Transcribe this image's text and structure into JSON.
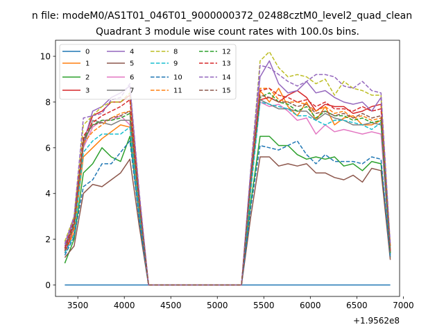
{
  "suptitle": "n file: modeM0/AS1T01_046T01_9000000372_02488cztM0_level2_quad_clean",
  "chart_data": {
    "type": "line",
    "title": "Quadrant 3 module wise count rates with 100.0s bins.",
    "xlabel": "",
    "ylabel": "",
    "x_offset_label": "+1.9562e8",
    "x": [
      3360,
      3460,
      3560,
      3660,
      3760,
      3860,
      3960,
      4060,
      4160,
      4260,
      4360,
      4460,
      4560,
      4660,
      4760,
      4860,
      4960,
      5060,
      5160,
      5260,
      5360,
      5460,
      5560,
      5660,
      5760,
      5860,
      5960,
      6060,
      6160,
      6260,
      6360,
      6460,
      6560,
      6660,
      6760,
      6860
    ],
    "xlim": [
      3260,
      6960
    ],
    "ylim": [
      -0.5,
      10.7
    ],
    "xticks": [
      3500,
      4000,
      4500,
      5000,
      5500,
      6000,
      6500,
      7000
    ],
    "yticks": [
      0,
      2,
      4,
      6,
      8,
      10
    ],
    "legend": {
      "position": "top-left",
      "columns": 4
    },
    "series": [
      {
        "name": "0",
        "color": "#1f77b4",
        "dash": "solid",
        "values": [
          0,
          0,
          0,
          0,
          0,
          0,
          0,
          0,
          0,
          0,
          0,
          0,
          0,
          0,
          0,
          0,
          0,
          0,
          0,
          0,
          0,
          0,
          0,
          0,
          0,
          0,
          0,
          0,
          0,
          0,
          0,
          0,
          0,
          0,
          0,
          0
        ]
      },
      {
        "name": "1",
        "color": "#ff7f0e",
        "dash": "solid",
        "values": [
          1.4,
          2.3,
          5.6,
          6.0,
          6.4,
          6.7,
          7.0,
          6.9,
          3.2,
          0,
          0,
          0,
          0,
          0,
          0,
          0,
          0,
          0,
          0,
          0,
          4.2,
          8.5,
          8.0,
          8.6,
          7.8,
          7.4,
          8.0,
          7.2,
          7.8,
          7.0,
          7.3,
          7.4,
          7.0,
          7.0,
          7.2,
          1.4
        ]
      },
      {
        "name": "2",
        "color": "#2ca02c",
        "dash": "solid",
        "values": [
          0.95,
          2.0,
          4.9,
          5.3,
          6.0,
          5.6,
          5.4,
          6.5,
          3.0,
          0,
          0,
          0,
          0,
          0,
          0,
          0,
          0,
          0,
          0,
          0,
          3.6,
          6.5,
          6.5,
          6.1,
          6.1,
          5.7,
          5.5,
          5.6,
          5.5,
          5.6,
          5.2,
          5.3,
          5.0,
          5.4,
          5.3,
          1.2
        ]
      },
      {
        "name": "3",
        "color": "#d62728",
        "dash": "solid",
        "values": [
          1.4,
          2.5,
          6.3,
          7.4,
          7.6,
          8.0,
          8.0,
          8.3,
          3.8,
          0,
          0,
          0,
          0,
          0,
          0,
          0,
          0,
          0,
          0,
          0,
          4.5,
          8.1,
          8.2,
          8.0,
          8.3,
          8.5,
          8.2,
          7.6,
          7.9,
          7.8,
          7.8,
          7.5,
          7.6,
          7.8,
          7.9,
          1.7
        ]
      },
      {
        "name": "4",
        "color": "#9467bd",
        "dash": "solid",
        "values": [
          1.7,
          2.9,
          6.2,
          7.6,
          7.8,
          8.2,
          8.4,
          8.7,
          4.0,
          0,
          0,
          0,
          0,
          0,
          0,
          0,
          0,
          0,
          0,
          0,
          5.0,
          9.1,
          9.8,
          8.8,
          8.4,
          8.5,
          8.9,
          8.4,
          8.5,
          8.2,
          8.0,
          7.9,
          8.0,
          7.6,
          8.2,
          1.6
        ]
      },
      {
        "name": "5",
        "color": "#8c564b",
        "dash": "solid",
        "values": [
          1.2,
          1.7,
          4.0,
          4.4,
          4.3,
          4.6,
          4.9,
          5.5,
          2.6,
          0,
          0,
          0,
          0,
          0,
          0,
          0,
          0,
          0,
          0,
          0,
          3.0,
          5.6,
          5.6,
          5.2,
          5.3,
          5.2,
          5.3,
          4.9,
          4.9,
          4.7,
          4.6,
          4.8,
          4.5,
          5.1,
          5.0,
          1.1
        ]
      },
      {
        "name": "6",
        "color": "#e377c2",
        "dash": "solid",
        "values": [
          1.5,
          2.6,
          6.0,
          6.9,
          7.2,
          7.2,
          7.4,
          7.0,
          3.3,
          0,
          0,
          0,
          0,
          0,
          0,
          0,
          0,
          0,
          0,
          0,
          4.3,
          8.0,
          7.8,
          7.9,
          7.6,
          7.2,
          7.3,
          6.6,
          7.0,
          6.7,
          6.8,
          6.7,
          6.6,
          6.7,
          6.6,
          1.3
        ]
      },
      {
        "name": "7",
        "color": "#7f7f7f",
        "dash": "solid",
        "values": [
          1.6,
          2.7,
          6.1,
          7.2,
          7.1,
          7.0,
          7.2,
          7.2,
          3.4,
          0,
          0,
          0,
          0,
          0,
          0,
          0,
          0,
          0,
          0,
          0,
          4.4,
          8.1,
          7.9,
          7.7,
          7.7,
          7.6,
          7.6,
          7.2,
          7.5,
          7.3,
          7.2,
          7.0,
          7.0,
          7.1,
          7.0,
          1.4
        ]
      },
      {
        "name": "8",
        "color": "#bcbd22",
        "dash": "dashed",
        "values": [
          1.9,
          3.0,
          7.0,
          7.4,
          7.8,
          8.0,
          8.0,
          8.4,
          4.0,
          0,
          0,
          0,
          0,
          0,
          0,
          0,
          0,
          0,
          0,
          0,
          5.0,
          9.8,
          10.2,
          9.5,
          9.1,
          9.2,
          9.1,
          8.8,
          9.0,
          8.3,
          8.9,
          8.6,
          8.5,
          8.3,
          8.3,
          1.7
        ]
      },
      {
        "name": "9",
        "color": "#17becf",
        "dash": "dashed",
        "values": [
          1.4,
          2.2,
          5.8,
          6.3,
          6.6,
          6.6,
          6.6,
          6.9,
          3.1,
          0,
          0,
          0,
          0,
          0,
          0,
          0,
          0,
          0,
          0,
          0,
          4.1,
          8.0,
          7.9,
          7.8,
          7.7,
          7.4,
          7.4,
          7.2,
          7.0,
          7.2,
          7.2,
          7.1,
          7.0,
          6.8,
          7.1,
          1.3
        ]
      },
      {
        "name": "10",
        "color": "#1f77b4",
        "dash": "dashed",
        "values": [
          1.3,
          2.1,
          4.3,
          4.6,
          5.3,
          5.3,
          5.8,
          6.3,
          2.9,
          0,
          0,
          0,
          0,
          0,
          0,
          0,
          0,
          0,
          0,
          0,
          3.4,
          6.1,
          6.0,
          5.9,
          6.1,
          6.3,
          5.7,
          5.3,
          5.7,
          5.4,
          5.4,
          5.4,
          5.3,
          5.6,
          5.5,
          1.2
        ]
      },
      {
        "name": "11",
        "color": "#ff7f0e",
        "dash": "dashed",
        "values": [
          1.5,
          2.5,
          6.2,
          6.7,
          7.0,
          7.3,
          7.5,
          7.6,
          3.6,
          0,
          0,
          0,
          0,
          0,
          0,
          0,
          0,
          0,
          0,
          0,
          4.6,
          8.6,
          8.6,
          8.1,
          8.0,
          8.0,
          7.9,
          7.6,
          7.8,
          7.5,
          7.6,
          7.3,
          7.4,
          7.2,
          7.3,
          1.5
        ]
      },
      {
        "name": "12",
        "color": "#2ca02c",
        "dash": "dashed",
        "values": [
          1.6,
          2.7,
          6.4,
          7.0,
          7.2,
          7.2,
          7.3,
          7.5,
          3.6,
          0,
          0,
          0,
          0,
          0,
          0,
          0,
          0,
          0,
          0,
          0,
          4.6,
          8.2,
          8.4,
          8.0,
          7.9,
          7.6,
          7.8,
          7.3,
          7.6,
          7.4,
          7.4,
          7.2,
          7.3,
          7.1,
          7.2,
          1.4
        ]
      },
      {
        "name": "13",
        "color": "#d62728",
        "dash": "dashed",
        "values": [
          1.6,
          2.8,
          6.5,
          7.1,
          7.4,
          7.6,
          7.8,
          8.1,
          3.8,
          0,
          0,
          0,
          0,
          0,
          0,
          0,
          0,
          0,
          0,
          0,
          4.8,
          8.5,
          8.6,
          8.3,
          8.2,
          8.0,
          8.1,
          7.8,
          8.0,
          7.7,
          7.7,
          7.6,
          7.8,
          7.6,
          7.7,
          1.5
        ]
      },
      {
        "name": "14",
        "color": "#9467bd",
        "dash": "dashed",
        "values": [
          1.8,
          3.0,
          7.3,
          7.4,
          7.5,
          8.1,
          8.2,
          8.8,
          4.1,
          0,
          0,
          0,
          0,
          0,
          0,
          0,
          0,
          0,
          0,
          0,
          5.1,
          9.6,
          9.5,
          9.2,
          8.9,
          8.7,
          8.9,
          9.2,
          9.2,
          9.1,
          8.7,
          8.6,
          8.9,
          8.5,
          8.4,
          1.8
        ]
      },
      {
        "name": "15",
        "color": "#8c564b",
        "dash": "dashed",
        "values": [
          1.5,
          2.6,
          6.3,
          7.0,
          7.1,
          7.3,
          7.4,
          7.6,
          3.6,
          0,
          0,
          0,
          0,
          0,
          0,
          0,
          0,
          0,
          0,
          0,
          4.6,
          8.3,
          8.2,
          8.0,
          8.0,
          7.8,
          7.9,
          7.5,
          7.6,
          7.4,
          7.5,
          7.3,
          7.5,
          7.3,
          7.4,
          1.4
        ]
      }
    ]
  }
}
